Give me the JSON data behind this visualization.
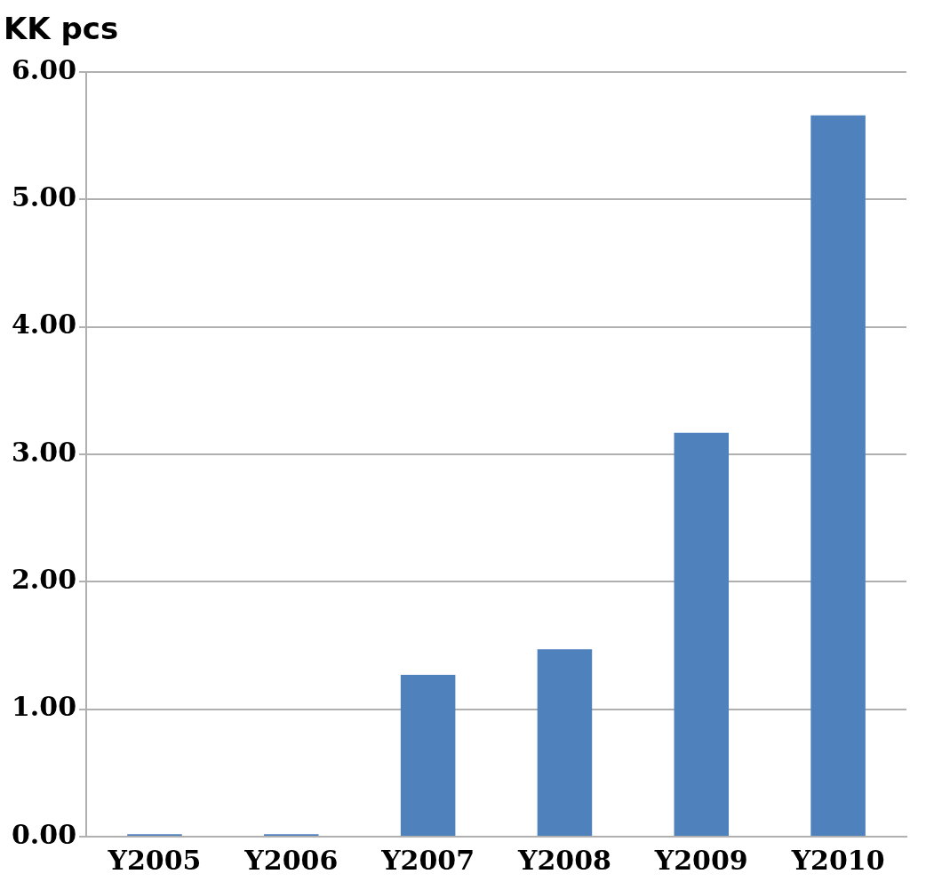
{
  "chart_data": {
    "type": "bar",
    "ylabel": "KK pcs",
    "categories": [
      "Y2005",
      "Y2006",
      "Y2007",
      "Y2008",
      "Y2009",
      "Y2010"
    ],
    "values": [
      0.02,
      0.02,
      1.27,
      1.47,
      3.17,
      5.66
    ],
    "color": "#4f81bd",
    "ylim": [
      0,
      6
    ],
    "yticks": [
      {
        "value": 0,
        "label": "0.00"
      },
      {
        "value": 1,
        "label": "1.00"
      },
      {
        "value": 2,
        "label": "2.00"
      },
      {
        "value": 3,
        "label": "3.00"
      },
      {
        "value": 4,
        "label": "4.00"
      },
      {
        "value": 5,
        "label": "5.00"
      },
      {
        "value": 6,
        "label": "6.00"
      }
    ],
    "grid": "y",
    "legend": false
  }
}
